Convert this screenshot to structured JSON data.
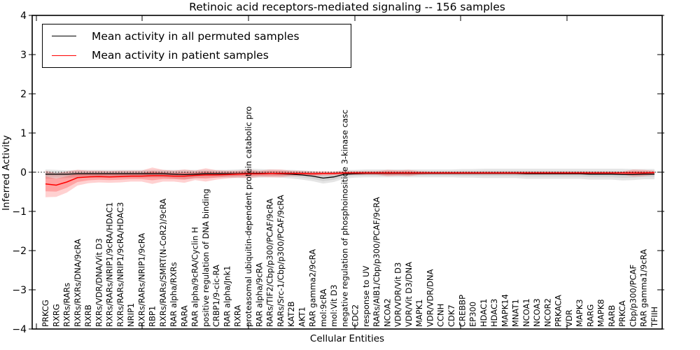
{
  "title": "Retinoic acid receptors-mediated signaling -- 156 samples",
  "legend": {
    "items": [
      {
        "label": "Mean activity in all permuted samples",
        "color": "#000000"
      },
      {
        "label": "Mean activity in patient samples",
        "color": "#ff0000"
      }
    ]
  },
  "chart_data": {
    "type": "line",
    "title": "Retinoic acid receptors-mediated signaling -- 156 samples",
    "xlabel": "Cellular Entities",
    "ylabel": "Inferred Activity",
    "ylim": [
      -4,
      4
    ],
    "yticks": [
      4,
      3,
      2,
      1,
      0,
      -1,
      -2,
      -3,
      -4
    ],
    "grid": false,
    "zero_reference_line": "dotted",
    "legend_position": "upper left",
    "categories": [
      "PRKCG",
      "RXRG",
      "RXRs/RARs",
      "RXRs/RXRs/DNA/9cRA",
      "RXRB",
      "RXRs/VDR/DNA/Vit D3",
      "RXRs/RARs/NRIP1/9cRA/HDAC1",
      "RXRs/RARs/NRIP1/9cRA/HDAC3",
      "NRIP1",
      "RXRs/RARs/NRIP1/9cRA",
      "RBP1",
      "RXRs/RARs/SMRT(N-CoR2)/9cRA",
      "RAR alpha/RXRs",
      "RARA",
      "RAR alpha/9cRA/Cyclin H",
      "positive regulation of DNA binding",
      "CRBP1/9-cic-RA",
      "RAR alpha/Jnk1",
      "RXRA",
      "proteasomal ubiquitin-dependent protein catabolic pro",
      "RAR alpha/9cRA",
      "RARs/TIF2/Cbp/p300/PCAF/9cRA",
      "RARs/Src-1/Cbp/p300/PCAF/9cRA",
      "KAT2B",
      "AKT1",
      "RAR gamma2/9cRA",
      "mol:9cRA",
      "mol:Vit D3",
      "negative regulation of phosphoinositide 3-kinase casc",
      "CDC2",
      "response to UV",
      "RARs/AIB1/Cbp/p300/PCAF/9cRA",
      "NCOA2",
      "VDR/VDR/Vit D3",
      "VDR/Vit D3/DNA",
      "MAPK1",
      "VDR/VDR/DNA",
      "CCNH",
      "CDK7",
      "CREBBP",
      "EP300",
      "HDAC1",
      "HDAC3",
      "MAPK14",
      "MNAT1",
      "NCOA1",
      "NCOA3",
      "NCOR2",
      "PRKACA",
      "VDR",
      "MAPK3",
      "RARG",
      "MAPK8",
      "RARB",
      "PRKCA",
      "Cbp/p300/PCAF",
      "RAR gamma1/9cRA",
      "TFIIH"
    ],
    "series": [
      {
        "name": "Mean activity in all permuted samples",
        "color": "#000000",
        "band_color": "#000000",
        "values": [
          -0.05,
          -0.05,
          -0.05,
          -0.04,
          -0.04,
          -0.04,
          -0.04,
          -0.04,
          -0.04,
          -0.04,
          -0.04,
          -0.04,
          -0.05,
          -0.06,
          -0.05,
          -0.04,
          -0.04,
          -0.04,
          -0.04,
          -0.03,
          -0.03,
          -0.03,
          -0.04,
          -0.05,
          -0.07,
          -0.1,
          -0.15,
          -0.12,
          -0.05,
          -0.04,
          -0.03,
          -0.03,
          -0.03,
          -0.03,
          -0.03,
          -0.03,
          -0.03,
          -0.03,
          -0.03,
          -0.03,
          -0.03,
          -0.03,
          -0.03,
          -0.03,
          -0.03,
          -0.04,
          -0.04,
          -0.04,
          -0.04,
          -0.04,
          -0.04,
          -0.05,
          -0.05,
          -0.05,
          -0.06,
          -0.06,
          -0.05,
          -0.05
        ],
        "band": [
          0.12,
          0.11,
          0.1,
          0.1,
          0.1,
          0.1,
          0.1,
          0.1,
          0.1,
          0.1,
          0.1,
          0.1,
          0.11,
          0.12,
          0.11,
          0.1,
          0.1,
          0.1,
          0.11,
          0.12,
          0.11,
          0.1,
          0.1,
          0.11,
          0.12,
          0.13,
          0.14,
          0.13,
          0.11,
          0.1,
          0.1,
          0.1,
          0.1,
          0.1,
          0.1,
          0.1,
          0.1,
          0.1,
          0.1,
          0.11,
          0.11,
          0.12,
          0.12,
          0.12,
          0.12,
          0.13,
          0.13,
          0.13,
          0.13,
          0.13,
          0.13,
          0.14,
          0.14,
          0.14,
          0.15,
          0.14,
          0.13,
          0.13
        ]
      },
      {
        "name": "Mean activity in patient samples",
        "color": "#ff0000",
        "band_color": "#ff0000",
        "values": [
          -0.3,
          -0.33,
          -0.25,
          -0.14,
          -0.12,
          -0.11,
          -0.12,
          -0.11,
          -0.1,
          -0.1,
          -0.09,
          -0.09,
          -0.1,
          -0.1,
          -0.08,
          -0.07,
          -0.07,
          -0.06,
          -0.05,
          -0.04,
          -0.04,
          -0.03,
          -0.03,
          -0.03,
          -0.03,
          -0.04,
          -0.03,
          -0.03,
          -0.02,
          -0.02,
          -0.02,
          -0.02,
          -0.02,
          -0.02,
          -0.02,
          -0.02,
          -0.02,
          -0.02,
          -0.02,
          -0.02,
          -0.02,
          -0.02,
          -0.02,
          -0.02,
          -0.02,
          -0.02,
          -0.02,
          -0.02,
          -0.02,
          -0.02,
          -0.02,
          -0.02,
          -0.02,
          -0.02,
          -0.02,
          -0.02,
          -0.02,
          -0.01
        ],
        "band": [
          0.34,
          0.3,
          0.27,
          0.2,
          0.16,
          0.15,
          0.15,
          0.15,
          0.14,
          0.14,
          0.21,
          0.15,
          0.14,
          0.17,
          0.12,
          0.17,
          0.12,
          0.1,
          0.09,
          0.11,
          0.08,
          0.1,
          0.1,
          0.07,
          0.06,
          0.06,
          0.06,
          0.05,
          0.05,
          0.05,
          0.05,
          0.05,
          0.08,
          0.07,
          0.08,
          0.05,
          0.04,
          0.04,
          0.04,
          0.04,
          0.04,
          0.04,
          0.04,
          0.04,
          0.04,
          0.04,
          0.04,
          0.04,
          0.04,
          0.04,
          0.04,
          0.04,
          0.04,
          0.04,
          0.04,
          0.09,
          0.08,
          0.05
        ]
      }
    ]
  }
}
